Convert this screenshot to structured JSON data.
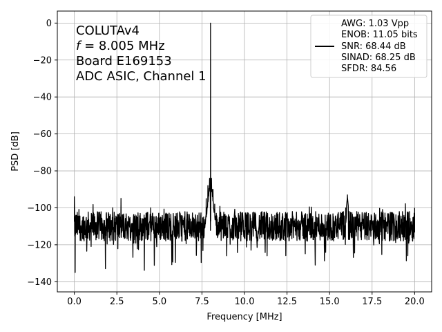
{
  "chart_data": {
    "type": "line",
    "xlabel": "Frequency [MHz]",
    "ylabel": "PSD [dB]",
    "xlim": [
      -1.0,
      21.0
    ],
    "ylim": [
      -145.5,
      6.5
    ],
    "xticks": [
      0.0,
      2.5,
      5.0,
      7.5,
      10.0,
      12.5,
      15.0,
      17.5,
      20.0
    ],
    "xtick_labels": [
      "0.0",
      "2.5",
      "5.0",
      "7.5",
      "10.0",
      "12.5",
      "15.0",
      "17.5",
      "20.0"
    ],
    "yticks": [
      0,
      -20,
      -40,
      -60,
      -80,
      -100,
      -120,
      -140
    ],
    "ytick_labels": [
      "0",
      "−20",
      "−40",
      "−60",
      "−80",
      "−100",
      "−120",
      "−140"
    ],
    "grid": true,
    "legend_placement": "upper-right",
    "annotation_lines": [
      "COLUTAv4",
      "= 8.005 MHz",
      "Board E169153",
      "ADC ASIC, Channel 1"
    ],
    "annotation_italic_prefix": "f",
    "legend_lines": [
      "AWG: 1.03 Vpp",
      "ENOB: 11.05 bits",
      "SNR: 68.44 dB",
      "SINAD: 68.25 dB",
      "SFDR: 84.56"
    ],
    "series": [
      {
        "line_color": "#000000",
        "noise_floor_db": -110,
        "x": [
          0.0,
          0.02,
          0.05,
          0.1,
          7.6,
          7.75,
          7.85,
          7.95,
          8.005,
          8.06,
          8.15,
          8.25,
          8.4,
          15.95,
          16.05,
          16.15,
          20.0
        ],
        "y": [
          -94,
          -113,
          -135,
          -110,
          -105,
          -95,
          -88,
          -84,
          0,
          -84,
          -90,
          -98,
          -112,
          -100,
          -93,
          -102,
          -100
        ]
      }
    ]
  }
}
